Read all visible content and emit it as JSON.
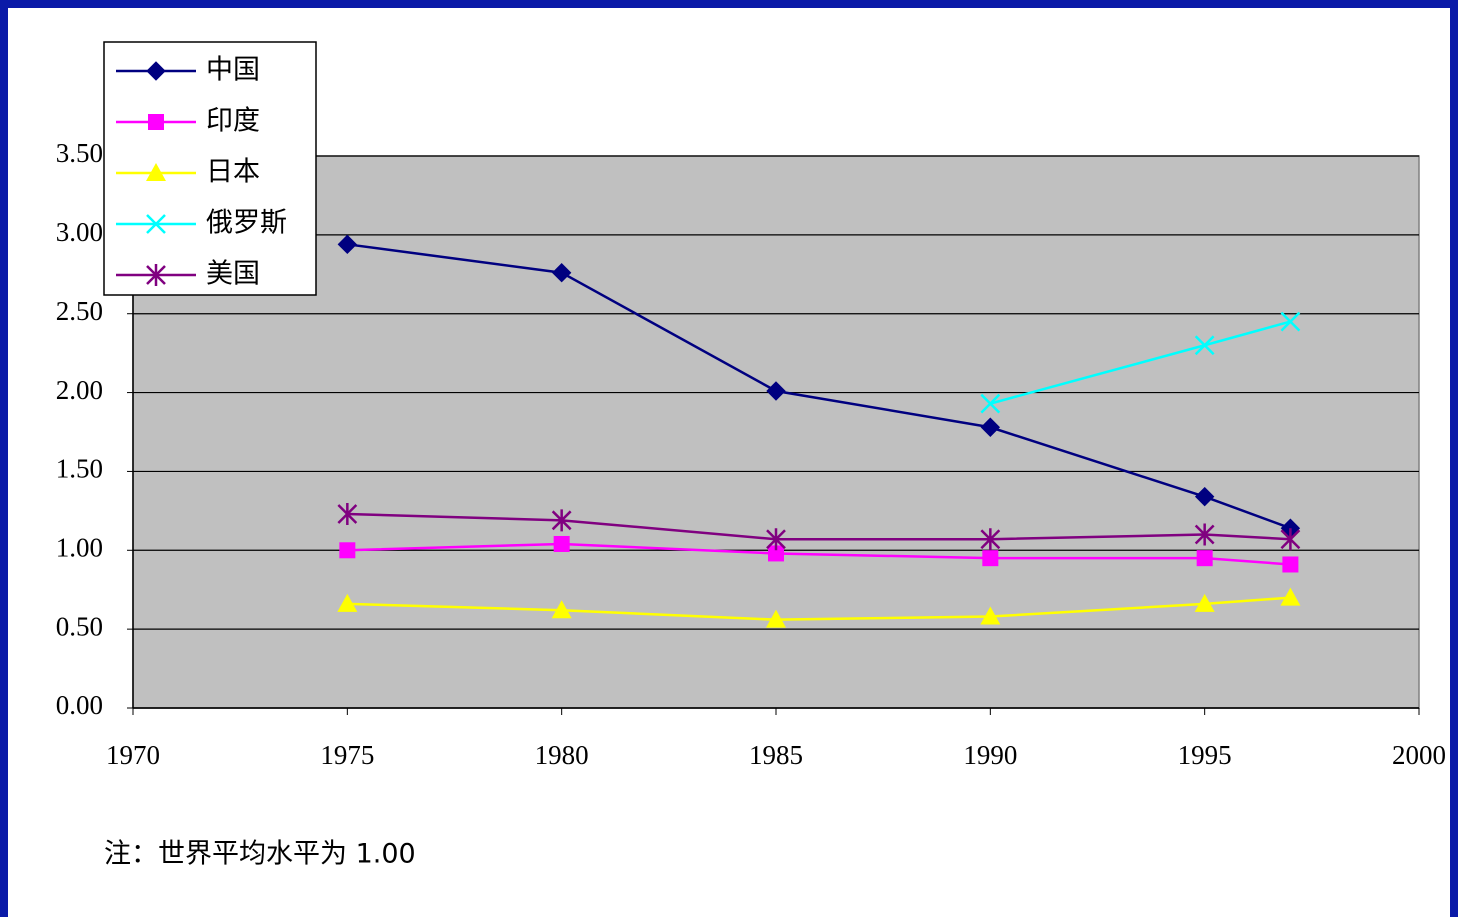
{
  "chart_data": {
    "type": "line",
    "x": [
      1975,
      1980,
      1985,
      1990,
      1995,
      1997
    ],
    "series": [
      {
        "name": "中国",
        "color": "#000080",
        "marker": "diamond",
        "values": [
          2.94,
          2.76,
          2.01,
          1.78,
          1.34,
          1.14
        ]
      },
      {
        "name": "印度",
        "color": "#ff00ff",
        "marker": "square",
        "values": [
          1.0,
          1.04,
          0.98,
          0.95,
          0.95,
          0.91
        ]
      },
      {
        "name": "日本",
        "color": "#ffff00",
        "marker": "triangle",
        "values": [
          0.66,
          0.62,
          0.56,
          0.58,
          0.66,
          0.7
        ]
      },
      {
        "name": "俄罗斯",
        "color": "#00ffff",
        "marker": "x",
        "values": [
          null,
          null,
          null,
          1.93,
          2.3,
          2.45
        ]
      },
      {
        "name": "美国",
        "color": "#800080",
        "marker": "star",
        "values": [
          1.23,
          1.19,
          1.07,
          1.07,
          1.1,
          1.07
        ]
      }
    ],
    "xlim": [
      1970,
      2000
    ],
    "xticks": [
      1970,
      1975,
      1980,
      1985,
      1990,
      1995,
      2000
    ],
    "ylim": [
      0,
      3.5
    ],
    "yticks": [
      {
        "value": 0,
        "label": "0.00"
      },
      {
        "value": 0.5,
        "label": "0.50"
      },
      {
        "value": 1,
        "label": "1.00"
      },
      {
        "value": 1.5,
        "label": "1.50"
      },
      {
        "value": 2,
        "label": "2.00"
      },
      {
        "value": 2.5,
        "label": "2.50"
      },
      {
        "value": 3,
        "label": "3.00"
      },
      {
        "value": 3.5,
        "label": "3.50"
      }
    ],
    "grid": true,
    "legend": "upper left",
    "plot_background": "#c0c0c0",
    "annotation": "注：世界平均水平为 1.00"
  }
}
